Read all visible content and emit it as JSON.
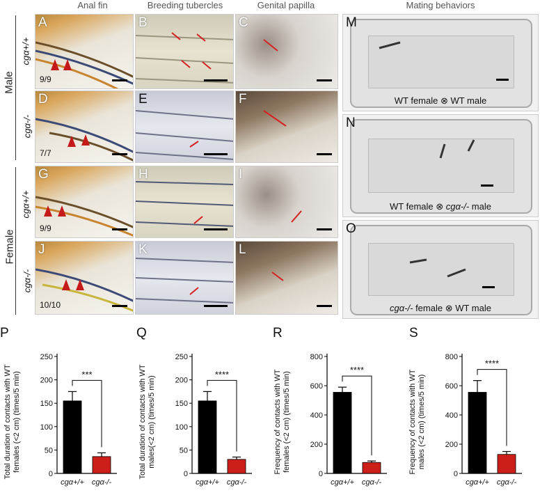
{
  "columns": [
    "Anal fin",
    "Breeding tubercles",
    "Genital papilla",
    "Mating behaviors"
  ],
  "row_groups": [
    "Male",
    "Female"
  ],
  "genotypes": [
    "cgα+/+",
    "cgα-/-",
    "cgα+/+",
    "cgα-/-"
  ],
  "panels": {
    "A": {
      "label": "A",
      "count": "9/9"
    },
    "B": {
      "label": "B"
    },
    "C": {
      "label": "C"
    },
    "D": {
      "label": "D",
      "count": "7/7"
    },
    "E": {
      "label": "E"
    },
    "F": {
      "label": "F"
    },
    "G": {
      "label": "G",
      "count": "9/9"
    },
    "H": {
      "label": "H"
    },
    "I": {
      "label": "I"
    },
    "J": {
      "label": "J",
      "count": "10/10"
    },
    "K": {
      "label": "K"
    },
    "L": {
      "label": "L"
    },
    "M": {
      "label": "M",
      "caption_pre": "WT female ⊗ WT male"
    },
    "N": {
      "label": "N",
      "caption_pre": "WT female ⊗ ",
      "caption_it": "cgα-/-",
      "caption_post": " male"
    },
    "O": {
      "label": "O",
      "caption_it": "cgα-/-",
      "caption_post": " female ⊗ WT male"
    }
  },
  "colors": {
    "wt_bar": "#000000",
    "mut_bar": "#cc1f1a",
    "arrow": "#d62020"
  },
  "chart_data": [
    {
      "letter": "P",
      "type": "bar",
      "categories": [
        "cgα+/+",
        "cgα-/-"
      ],
      "values": [
        155,
        36
      ],
      "errors": [
        20,
        8
      ],
      "ylabel_lines": [
        "Total duration of contacts with WT",
        "females (<2 cm) (times/5 min)"
      ],
      "ylim": [
        0,
        250
      ],
      "yticks": [
        0,
        50,
        100,
        150,
        200,
        250
      ],
      "significance": "***"
    },
    {
      "letter": "Q",
      "type": "bar",
      "categories": [
        "cgα+/+",
        "cgα-/-"
      ],
      "values": [
        155,
        30
      ],
      "errors": [
        20,
        5
      ],
      "ylabel_lines": [
        "Total duration of contacts with WT",
        "males(<2 cm) (times/5 min)"
      ],
      "ylim": [
        0,
        250
      ],
      "yticks": [
        0,
        50,
        100,
        150,
        200,
        250
      ],
      "significance": "****"
    },
    {
      "letter": "R",
      "type": "bar",
      "categories": [
        "cgα+/+",
        "cgα-/-"
      ],
      "values": [
        555,
        75
      ],
      "errors": [
        35,
        10
      ],
      "ylabel_lines": [
        "Frequency of contacts with WT",
        "females (<2 cm) (times/5 min)"
      ],
      "ylim": [
        0,
        800
      ],
      "yticks": [
        0,
        200,
        400,
        600,
        800
      ],
      "significance": "****"
    },
    {
      "letter": "S",
      "type": "bar",
      "categories": [
        "cgα+/+",
        "cgα-/-"
      ],
      "values": [
        555,
        130
      ],
      "errors": [
        80,
        20
      ],
      "ylabel_lines": [
        "Frequency of contacts with WT",
        "males (<2 cm) (times/5 min)"
      ],
      "ylim": [
        0,
        800
      ],
      "yticks": [
        0,
        200,
        400,
        600,
        800
      ],
      "significance": "****"
    }
  ]
}
